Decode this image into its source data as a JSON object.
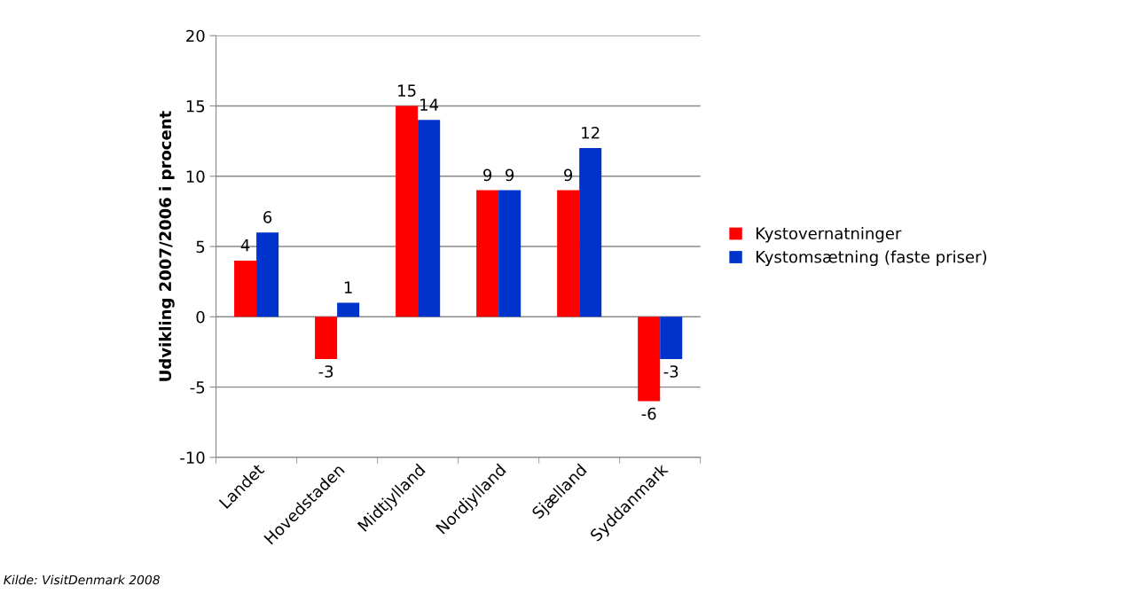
{
  "chart_data": {
    "type": "bar",
    "ylabel": "Udvikling 2007/2006 i procent",
    "categories": [
      "Landet",
      "Hovedstaden",
      "Midtjylland",
      "Nordjylland",
      "Sjælland",
      "Syddanmark"
    ],
    "series": [
      {
        "name": "Kystovernatninger",
        "color": "#ff0000",
        "values": [
          4,
          -3,
          15,
          9,
          9,
          -6
        ]
      },
      {
        "name": "Kystomsætning (faste priser)",
        "color": "#0033cc",
        "values": [
          6,
          1,
          14,
          9,
          12,
          -3
        ]
      }
    ],
    "ylim": [
      -10,
      20
    ],
    "yticks": [
      -10,
      -5,
      0,
      5,
      10,
      15,
      20
    ],
    "grid": "y",
    "legend": "right",
    "data_labels": true,
    "annotations": [
      "Kilde: VisitDenmark 2008"
    ]
  }
}
